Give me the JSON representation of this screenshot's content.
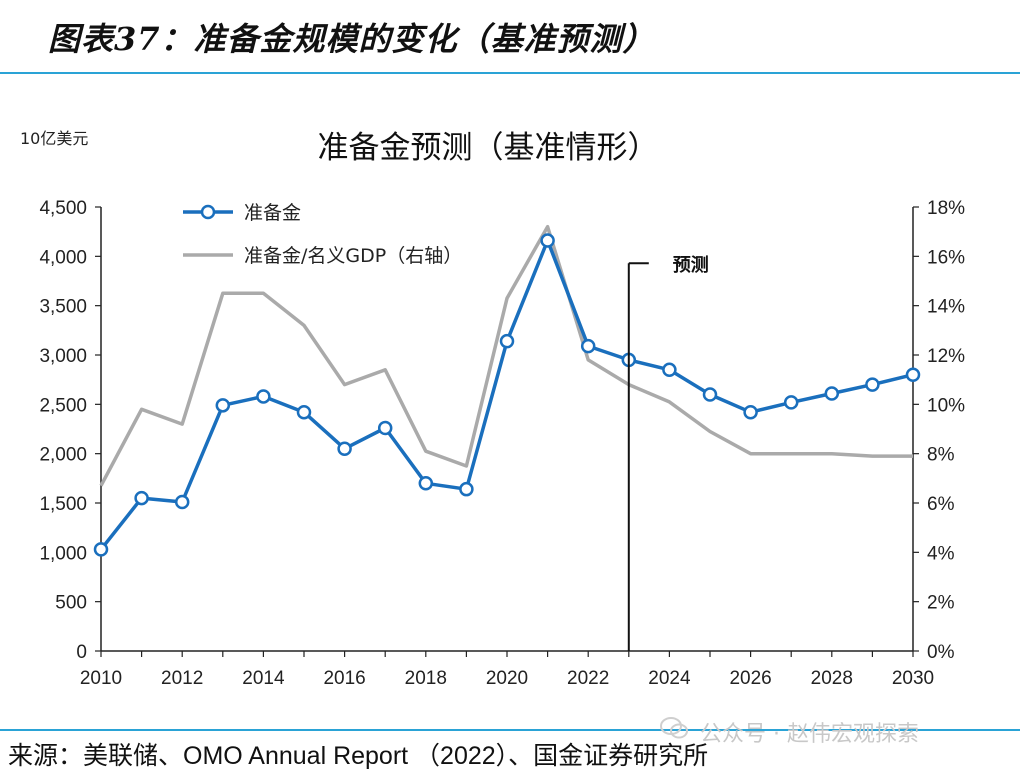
{
  "header": {
    "title": "图表37：准备金规模的变化（基准预测）"
  },
  "footer": {
    "source": "来源：美联储、OMO Annual Report （2022）、国金证券研究所",
    "watermark": "公众号 · 赵伟宏观探索"
  },
  "colors": {
    "reserves": "#1a6fbd",
    "ratio": "#aaaaaa",
    "accent": "#2aa3d6"
  },
  "chart_data": {
    "type": "line",
    "title": "准备金预测（基准情形）",
    "unit_label": "10亿美元",
    "x": [
      2010,
      2011,
      2012,
      2013,
      2014,
      2015,
      2016,
      2017,
      2018,
      2019,
      2020,
      2021,
      2022,
      2023,
      2024,
      2025,
      2026,
      2027,
      2028,
      2029,
      2030
    ],
    "x_ticks": [
      "2010",
      "2012",
      "2014",
      "2016",
      "2018",
      "2020",
      "2022",
      "2024",
      "2026",
      "2028",
      "2030"
    ],
    "y_left": {
      "range": [
        0,
        4500
      ],
      "ticks": [
        "0",
        "500",
        "1,000",
        "1,500",
        "2,000",
        "2,500",
        "3,000",
        "3,500",
        "4,000",
        "4,500"
      ]
    },
    "y_right": {
      "range": [
        0,
        18
      ],
      "ticks": [
        "0%",
        "2%",
        "4%",
        "6%",
        "8%",
        "10%",
        "12%",
        "14%",
        "16%",
        "18%"
      ]
    },
    "series": [
      {
        "name": "准备金",
        "axis": "left",
        "markers": true,
        "values": [
          1030,
          1550,
          1510,
          2490,
          2580,
          2420,
          2050,
          2260,
          1700,
          1640,
          3140,
          4160,
          3090,
          2950,
          2850,
          2600,
          2420,
          2520,
          2610,
          2700,
          2800
        ]
      },
      {
        "name": "准备金/名义GDP（右轴）",
        "axis": "right",
        "markers": false,
        "values": [
          6.7,
          9.8,
          9.2,
          14.5,
          14.5,
          13.2,
          10.8,
          11.4,
          8.1,
          7.5,
          14.3,
          17.2,
          11.8,
          10.8,
          10.1,
          8.9,
          8.0,
          8.0,
          8.0,
          7.9,
          7.9
        ]
      }
    ],
    "forecast": {
      "label": "预测",
      "year": 2023
    }
  }
}
